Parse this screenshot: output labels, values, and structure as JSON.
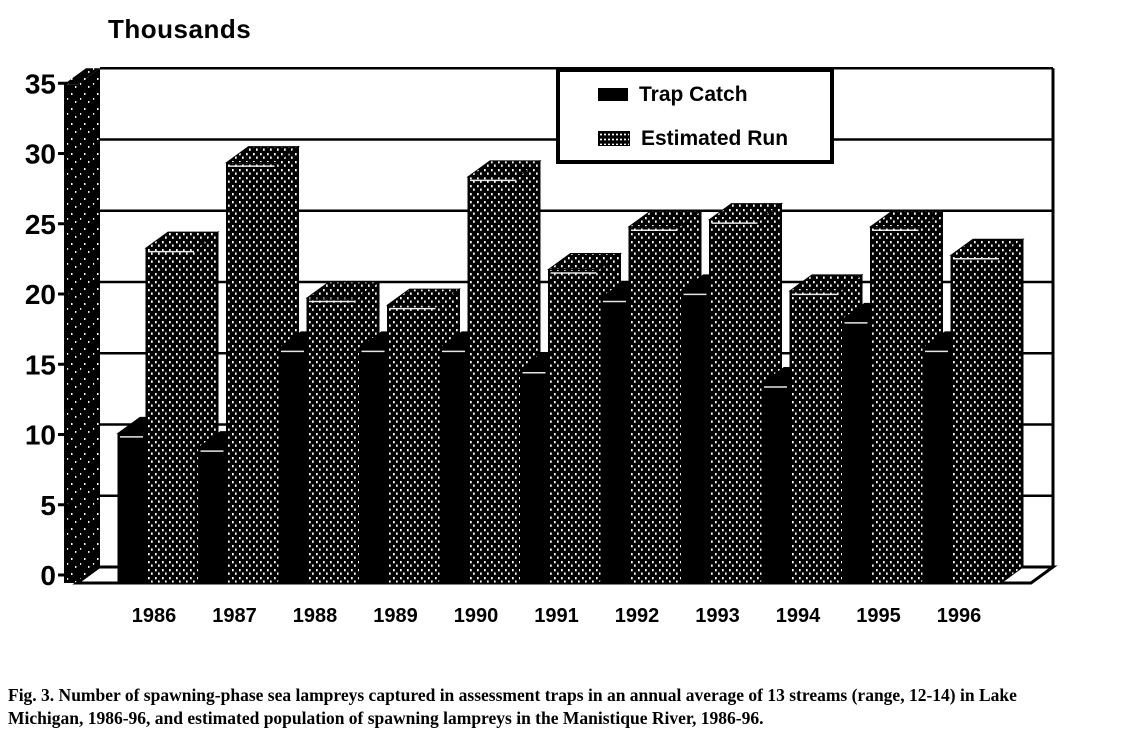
{
  "figure": {
    "axis_title": "Thousands",
    "caption_line1": "Fig. 3.  Number of spawning-phase sea lampreys captured in assessment traps in an annual average of 13 streams (range, 12-14) in Lake",
    "caption_line2": "Michigan, 1986-96, and estimated population of spawning lampreys in the Manistique River, 1986-96."
  },
  "legend": {
    "items": [
      {
        "label": "Trap Catch",
        "style": "solid-black"
      },
      {
        "label": "Estimated Run",
        "style": "stippled-black"
      }
    ]
  },
  "colors": {
    "ink": "#000000",
    "paper": "#ffffff"
  },
  "chart_data": {
    "type": "bar",
    "style": "3d-clustered-monochrome-scan",
    "title": "Thousands",
    "ylabel": "Thousands",
    "xlabel": "",
    "categories": [
      "1986",
      "1987",
      "1988",
      "1989",
      "1990",
      "1991",
      "1992",
      "1993",
      "1994",
      "1995",
      "1996"
    ],
    "series": [
      {
        "name": "Trap Catch",
        "fill": "solid-black",
        "values": [
          10.5,
          9.5,
          16.5,
          16.5,
          16.5,
          15,
          20,
          20.5,
          14,
          18.5,
          16.5
        ]
      },
      {
        "name": "Estimated Run",
        "fill": "stippled-black",
        "values": [
          23.5,
          29.5,
          20,
          19.5,
          28.5,
          22,
          25,
          25.5,
          20.5,
          25,
          23
        ]
      }
    ],
    "ylim": [
      0,
      35
    ],
    "yticks": [
      0,
      5,
      10,
      15,
      20,
      25,
      30,
      35
    ],
    "grid": true,
    "legend_position": "top-center-right"
  }
}
